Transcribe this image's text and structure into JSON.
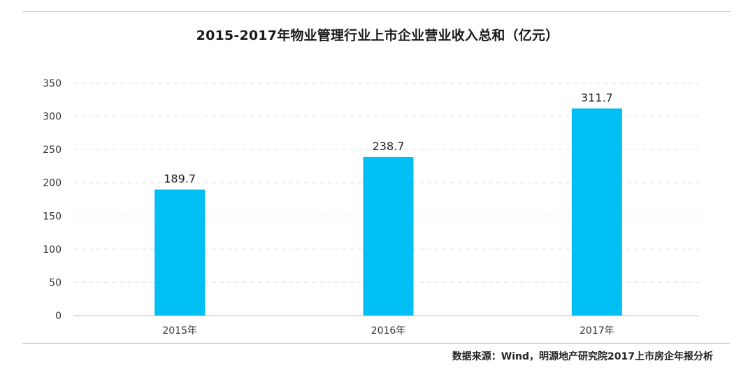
{
  "chart_data": {
    "type": "bar",
    "title": "2015-2017年物业管理行业上市企业营业收入总和（亿元）",
    "categories": [
      "2015年",
      "2016年",
      "2017年"
    ],
    "values": [
      189.7,
      238.7,
      311.7
    ],
    "data_labels": [
      "189.7",
      "238.7",
      "311.7"
    ],
    "ylim": [
      0,
      350
    ],
    "yticks": [
      0,
      50,
      100,
      150,
      200,
      250,
      300,
      350
    ],
    "grid": true,
    "grid_style": "dashed",
    "bar_color": "#00BFF3",
    "legend": "none",
    "source": "数据来源：Wind，明源地产研究院2017上市房企年报分析"
  }
}
